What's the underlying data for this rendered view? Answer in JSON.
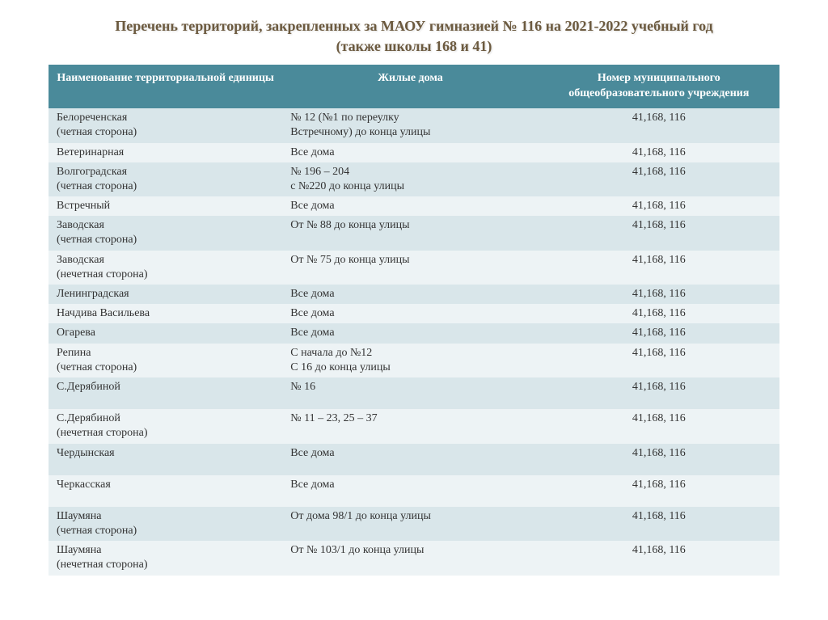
{
  "title": "Перечень территорий, закрепленных за МАОУ гимназией № 116   на 2021-2022 учебный год (также школы 168 и 41)",
  "columns": [
    "Наименование территориальной единицы",
    "Жилые дома",
    "Номер муниципального общеобразовательного учреждения"
  ],
  "header_bg": "#4a8a9a",
  "header_fg": "#ffffff",
  "row_odd_bg": "#d9e6ea",
  "row_even_bg": "#edf3f5",
  "title_color": "#6c5a3f",
  "rows": [
    {
      "territory_1": "Белореченская",
      "territory_2": "(четная сторона)",
      "houses_1": "№ 12 (№1 по переулку",
      "houses_2": "Встречному) до конца улицы",
      "number": "41,168, 116",
      "tall": false
    },
    {
      "territory_1": "Ветеринарная",
      "territory_2": "",
      "houses_1": "Все дома",
      "houses_2": "",
      "number": "41,168, 116",
      "tall": false
    },
    {
      "territory_1": "Волгоградская",
      "territory_2": "(четная сторона)",
      "houses_1": "№ 196 – 204",
      "houses_2": "с №220 до конца улицы",
      "number": "41,168, 116",
      "tall": false
    },
    {
      "territory_1": "Встречный",
      "territory_2": "",
      "houses_1": "Все дома",
      "houses_2": "",
      "number": "41,168, 116",
      "tall": false
    },
    {
      "territory_1": "Заводская",
      "territory_2": "(четная сторона)",
      "houses_1": "От № 88 до конца улицы",
      "houses_2": "",
      "number": "41,168, 116",
      "tall": false
    },
    {
      "territory_1": "Заводская",
      "territory_2": "(нечетная сторона)",
      "houses_1": "От № 75 до конца улицы",
      "houses_2": "",
      "number": "41,168, 116",
      "tall": false
    },
    {
      "territory_1": "Ленинградская",
      "territory_2": "",
      "houses_1": "Все дома",
      "houses_2": "",
      "number": "41,168, 116",
      "tall": false
    },
    {
      "territory_1": "Начдива Васильева",
      "territory_2": "",
      "houses_1": "Все дома",
      "houses_2": "",
      "number": "41,168, 116",
      "tall": false
    },
    {
      "territory_1": "Огарева",
      "territory_2": "",
      "houses_1": "Все дома",
      "houses_2": "",
      "number": "41,168, 116",
      "tall": false
    },
    {
      "territory_1": "Репина",
      "territory_2": "(четная сторона)",
      "houses_1": "С начала до №12",
      "houses_2": "С 16 до конца улицы",
      "number": "41,168, 116",
      "tall": false
    },
    {
      "territory_1": "С.Дерябиной",
      "territory_2": "",
      "houses_1": "№ 16",
      "houses_2": "",
      "number": "41,168, 116",
      "tall": true
    },
    {
      "territory_1": "С.Дерябиной",
      "territory_2": "(нечетная сторона)",
      "houses_1": "№ 11 – 23, 25 – 37",
      "houses_2": "",
      "number": "41,168, 116",
      "tall": false
    },
    {
      "territory_1": "Чердынская",
      "territory_2": "",
      "houses_1": "Все дома",
      "houses_2": "",
      "number": "41,168, 116",
      "tall": true
    },
    {
      "territory_1": "Черкасская",
      "territory_2": "",
      "houses_1": "Все дома",
      "houses_2": "",
      "number": "41,168, 116",
      "tall": true
    },
    {
      "territory_1": "Шаумяна",
      "territory_2": "(четная сторона)",
      "houses_1": "От дома 98/1 до конца улицы",
      "houses_2": "",
      "number": "41,168, 116",
      "tall": false
    },
    {
      "territory_1": "Шаумяна",
      "territory_2": "(нечетная сторона)",
      "houses_1": "От № 103/1 до конца улицы",
      "houses_2": "",
      "number": "41,168, 116",
      "tall": false
    }
  ]
}
